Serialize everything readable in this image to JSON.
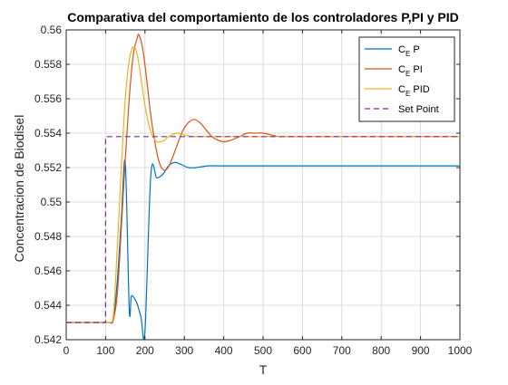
{
  "chart_data": {
    "type": "line",
    "title": "Comparativa del comportamiento de los controladores P,PI y PID",
    "xlabel": "T",
    "ylabel": "Concentracion de Biodisel",
    "xlim": [
      0,
      1000
    ],
    "ylim": [
      0.542,
      0.56
    ],
    "xticks": [
      0,
      100,
      200,
      300,
      400,
      500,
      600,
      700,
      800,
      900,
      1000
    ],
    "yticks": [
      0.542,
      0.544,
      0.546,
      0.548,
      0.55,
      0.552,
      0.554,
      0.556,
      0.558,
      0.56
    ],
    "xtick_labels": [
      "0",
      "100",
      "200",
      "300",
      "400",
      "500",
      "600",
      "700",
      "800",
      "900",
      "1000"
    ],
    "ytick_labels": [
      "0.542",
      "0.544",
      "0.546",
      "0.548",
      "0.55",
      "0.552",
      "0.554",
      "0.556",
      "0.558",
      "0.56"
    ],
    "grid": true,
    "legend_position": "top-right",
    "series": [
      {
        "name": "C_E P",
        "legend_main": "C",
        "legend_sub": "E",
        "legend_rest": " P",
        "color": "#0072BD",
        "dash": "solid",
        "points": [
          [
            0,
            0.543
          ],
          [
            100,
            0.543
          ],
          [
            110,
            0.543
          ],
          [
            120,
            0.5432
          ],
          [
            130,
            0.5455
          ],
          [
            140,
            0.549
          ],
          [
            150,
            0.5523
          ],
          [
            160,
            0.5438
          ],
          [
            165,
            0.5445
          ],
          [
            170,
            0.5445
          ],
          [
            180,
            0.5441
          ],
          [
            190,
            0.5433
          ],
          [
            200,
            0.5425
          ],
          [
            215,
            0.5516
          ],
          [
            230,
            0.5514
          ],
          [
            245,
            0.5516
          ],
          [
            260,
            0.5521
          ],
          [
            275,
            0.5523
          ],
          [
            290,
            0.5522
          ],
          [
            310,
            0.552
          ],
          [
            330,
            0.552
          ],
          [
            360,
            0.5521
          ],
          [
            400,
            0.5521
          ],
          [
            500,
            0.5521
          ],
          [
            600,
            0.5521
          ],
          [
            700,
            0.5521
          ],
          [
            800,
            0.5521
          ],
          [
            900,
            0.5521
          ],
          [
            1000,
            0.5521
          ]
        ]
      },
      {
        "name": "C_E PI",
        "legend_main": "C",
        "legend_sub": "E",
        "legend_rest": " PI",
        "color": "#D95319",
        "dash": "solid",
        "points": [
          [
            0,
            0.543
          ],
          [
            100,
            0.543
          ],
          [
            110,
            0.543
          ],
          [
            120,
            0.5432
          ],
          [
            130,
            0.5447
          ],
          [
            140,
            0.5485
          ],
          [
            150,
            0.5525
          ],
          [
            160,
            0.556
          ],
          [
            170,
            0.5585
          ],
          [
            180,
            0.5595
          ],
          [
            185,
            0.5597
          ],
          [
            195,
            0.5588
          ],
          [
            205,
            0.557
          ],
          [
            215,
            0.555
          ],
          [
            225,
            0.5535
          ],
          [
            235,
            0.5524
          ],
          [
            245,
            0.5519
          ],
          [
            255,
            0.5519
          ],
          [
            265,
            0.5523
          ],
          [
            280,
            0.5532
          ],
          [
            295,
            0.5541
          ],
          [
            310,
            0.5546
          ],
          [
            325,
            0.5548
          ],
          [
            340,
            0.5546
          ],
          [
            355,
            0.5542
          ],
          [
            370,
            0.5538
          ],
          [
            385,
            0.5536
          ],
          [
            400,
            0.5535
          ],
          [
            420,
            0.5536
          ],
          [
            440,
            0.5538
          ],
          [
            460,
            0.554
          ],
          [
            480,
            0.554
          ],
          [
            500,
            0.554
          ],
          [
            520,
            0.5539
          ],
          [
            540,
            0.5538
          ],
          [
            560,
            0.5538
          ],
          [
            580,
            0.5538
          ],
          [
            600,
            0.5538
          ],
          [
            700,
            0.5538
          ],
          [
            800,
            0.5538
          ],
          [
            900,
            0.5538
          ],
          [
            1000,
            0.5538
          ]
        ]
      },
      {
        "name": "C_E PID",
        "legend_main": "C",
        "legend_sub": "E",
        "legend_rest": " PID",
        "color": "#EDB120",
        "dash": "solid",
        "points": [
          [
            0,
            0.543
          ],
          [
            100,
            0.543
          ],
          [
            110,
            0.543
          ],
          [
            120,
            0.5435
          ],
          [
            130,
            0.5475
          ],
          [
            140,
            0.552
          ],
          [
            150,
            0.556
          ],
          [
            160,
            0.5582
          ],
          [
            170,
            0.559
          ],
          [
            180,
            0.5586
          ],
          [
            190,
            0.5572
          ],
          [
            200,
            0.5556
          ],
          [
            210,
            0.5545
          ],
          [
            220,
            0.5538
          ],
          [
            230,
            0.5535
          ],
          [
            240,
            0.5535
          ],
          [
            250,
            0.5536
          ],
          [
            260,
            0.5538
          ],
          [
            280,
            0.554
          ],
          [
            300,
            0.5539
          ],
          [
            320,
            0.5538
          ],
          [
            340,
            0.5538
          ],
          [
            400,
            0.5538
          ],
          [
            500,
            0.5538
          ],
          [
            600,
            0.5538
          ],
          [
            700,
            0.5538
          ],
          [
            800,
            0.5538
          ],
          [
            900,
            0.5538
          ],
          [
            1000,
            0.5538
          ]
        ]
      },
      {
        "name": "Set Point",
        "legend_main": "Set Point",
        "legend_sub": "",
        "legend_rest": "",
        "color": "#7E2F8E",
        "dash": "dashed",
        "points": [
          [
            0,
            0.543
          ],
          [
            100,
            0.543
          ],
          [
            100,
            0.5538
          ],
          [
            1000,
            0.5538
          ]
        ]
      }
    ]
  }
}
